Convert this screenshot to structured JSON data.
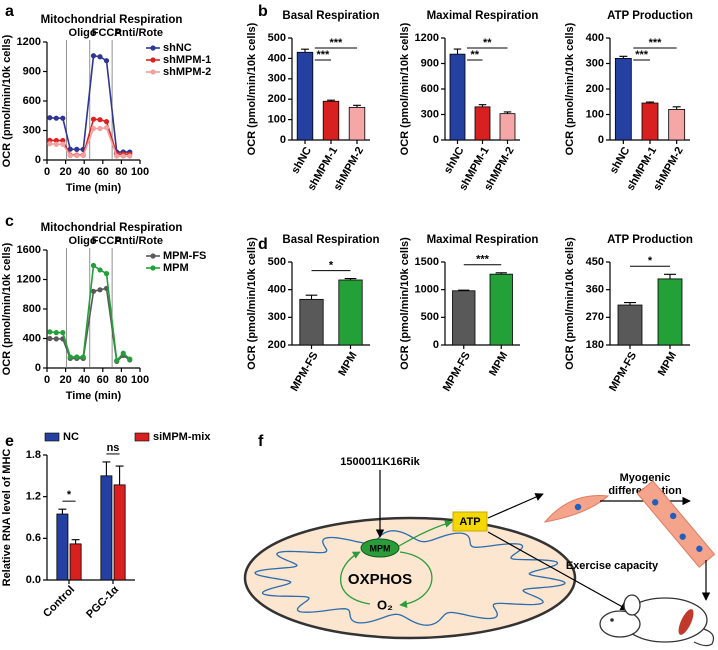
{
  "panel_labels": [
    "a",
    "b",
    "c",
    "d",
    "e",
    "f"
  ],
  "chart_data": [
    {
      "type": "line",
      "title": "Mitochondrial Respiration",
      "xlabel": "Time (min)",
      "ylabel": "OCR (pmol/min/10k cells)",
      "x": [
        3,
        10,
        17,
        25,
        32,
        39,
        50,
        57,
        64,
        75,
        82,
        89
      ],
      "xlim": [
        0,
        100
      ],
      "xticks": [
        0,
        20,
        40,
        60,
        80,
        100
      ],
      "ylim": [
        0,
        1200
      ],
      "yticks": [
        0,
        300,
        600,
        900,
        1200
      ],
      "injections": [
        {
          "label": "Oligo",
          "x": 21
        },
        {
          "label": "FCCP",
          "x": 46
        },
        {
          "label": "Anti/Rote",
          "x": 70
        }
      ],
      "series": [
        {
          "name": "shNC",
          "color": "#2e3592",
          "values": [
            430,
            425,
            425,
            110,
            108,
            108,
            1060,
            1050,
            1010,
            80,
            82,
            80
          ]
        },
        {
          "name": "shMPM-1",
          "color": "#e02020",
          "values": [
            200,
            198,
            198,
            50,
            50,
            50,
            415,
            410,
            390,
            60,
            60,
            58
          ]
        },
        {
          "name": "shMPM-2",
          "color": "#f2a0a0",
          "values": [
            165,
            160,
            160,
            45,
            45,
            45,
            320,
            320,
            330,
            40,
            40,
            40
          ]
        }
      ]
    },
    {
      "type": "bar",
      "title": "Basal Respiration",
      "ylabel": "OCR (pmol/min/10k cells)",
      "categories": [
        "shNC",
        "shMPM-1",
        "shMPM-2"
      ],
      "colors": [
        "#2440a0",
        "#d92020",
        "#f5a6a6"
      ],
      "values": [
        430,
        190,
        160
      ],
      "errors": [
        15,
        5,
        10
      ],
      "ylim": [
        0,
        500
      ],
      "yticks": [
        0,
        100,
        200,
        300,
        400,
        500
      ],
      "significance": [
        {
          "pair": [
            0,
            1
          ],
          "label": "***"
        },
        {
          "pair": [
            0,
            2
          ],
          "label": "***"
        }
      ]
    },
    {
      "type": "bar",
      "title": "Maximal Respiration",
      "ylabel": "OCR (pmol/min/10k cells)",
      "categories": [
        "shNC",
        "shMPM-1",
        "shMPM-2"
      ],
      "colors": [
        "#2440a0",
        "#d92020",
        "#f5a6a6"
      ],
      "values": [
        1010,
        390,
        310
      ],
      "errors": [
        60,
        25,
        20
      ],
      "ylim": [
        0,
        1200
      ],
      "yticks": [
        0,
        300,
        600,
        900,
        1200
      ],
      "significance": [
        {
          "pair": [
            0,
            1
          ],
          "label": "**"
        },
        {
          "pair": [
            0,
            2
          ],
          "label": "**"
        }
      ]
    },
    {
      "type": "bar",
      "title": "ATP Production",
      "ylabel": "OCR (pmol/min/10k cells)",
      "categories": [
        "shNC",
        "shMPM-1",
        "shMPM-2"
      ],
      "colors": [
        "#2440a0",
        "#d92020",
        "#f5a6a6"
      ],
      "values": [
        320,
        145,
        120
      ],
      "errors": [
        8,
        4,
        10
      ],
      "ylim": [
        0,
        400
      ],
      "yticks": [
        0,
        100,
        200,
        300,
        400
      ],
      "significance": [
        {
          "pair": [
            0,
            1
          ],
          "label": "***"
        },
        {
          "pair": [
            0,
            2
          ],
          "label": "***"
        }
      ]
    },
    {
      "type": "line",
      "title": "Mitochondrial Respiration",
      "xlabel": "Time (min)",
      "ylabel": "OCR (pmol/min/10k cells)",
      "x": [
        3,
        10,
        17,
        25,
        32,
        39,
        50,
        57,
        64,
        75,
        82,
        89
      ],
      "xlim": [
        0,
        100
      ],
      "xticks": [
        0,
        20,
        40,
        60,
        80,
        100
      ],
      "ylim": [
        0,
        1600
      ],
      "yticks": [
        0,
        400,
        800,
        1200,
        1600
      ],
      "injections": [
        {
          "label": "Oligo",
          "x": 21
        },
        {
          "label": "FCCP",
          "x": 46
        },
        {
          "label": "Anti/Rote",
          "x": 70
        }
      ],
      "series": [
        {
          "name": "MPM-FS",
          "color": "#595959",
          "values": [
            400,
            395,
            395,
            130,
            130,
            130,
            1040,
            1060,
            1080,
            90,
            170,
            110
          ]
        },
        {
          "name": "MPM",
          "color": "#23a038",
          "values": [
            490,
            480,
            480,
            150,
            150,
            150,
            1390,
            1330,
            1280,
            100,
            200,
            120
          ]
        }
      ]
    },
    {
      "type": "bar",
      "title": "Basal Respiration",
      "ylabel": "OCR (pmol/min/10k cells)",
      "categories": [
        "MPM-FS",
        "MPM"
      ],
      "colors": [
        "#595959",
        "#23a038"
      ],
      "values": [
        365,
        435
      ],
      "errors": [
        15,
        5
      ],
      "ylim": [
        200,
        500
      ],
      "yticks": [
        200,
        300,
        400,
        500
      ],
      "significance": [
        {
          "pair": [
            0,
            1
          ],
          "label": "*"
        }
      ]
    },
    {
      "type": "bar",
      "title": "Maximal Respiration",
      "ylabel": "OCR (pmol/min/10k cells)",
      "categories": [
        "MPM-FS",
        "MPM"
      ],
      "colors": [
        "#595959",
        "#23a038"
      ],
      "values": [
        980,
        1280
      ],
      "errors": [
        10,
        25
      ],
      "ylim": [
        0,
        1500
      ],
      "yticks": [
        0,
        500,
        1000,
        1500
      ],
      "significance": [
        {
          "pair": [
            0,
            1
          ],
          "label": "***"
        }
      ]
    },
    {
      "type": "bar",
      "title": "ATP Production",
      "ylabel": "OCR (pmol/min/10k cells)",
      "categories": [
        "MPM-FS",
        "MPM"
      ],
      "colors": [
        "#595959",
        "#23a038"
      ],
      "values": [
        310,
        395
      ],
      "errors": [
        8,
        15
      ],
      "ylim": [
        180,
        450
      ],
      "yticks": [
        180,
        270,
        360,
        450
      ],
      "significance": [
        {
          "pair": [
            0,
            1
          ],
          "label": "*"
        }
      ]
    },
    {
      "type": "grouped_bar",
      "ylabel": "Relative RNA level of MHC",
      "categories": [
        "Control",
        "PGC-1α"
      ],
      "series": [
        {
          "name": "NC",
          "color": "#2440a0",
          "values": [
            0.95,
            1.5
          ],
          "errors": [
            0.07,
            0.2
          ]
        },
        {
          "name": "siMPM-mix",
          "color": "#d92020",
          "values": [
            0.52,
            1.37
          ],
          "errors": [
            0.06,
            0.27
          ]
        }
      ],
      "ylim": [
        0,
        1.8
      ],
      "yticks": [
        {
          "value": 0,
          "label": "0.0"
        },
        {
          "value": 0.6,
          "label": "0.6"
        },
        {
          "value": 1.2,
          "label": "1.2"
        },
        {
          "value": 1.8,
          "label": "1.8"
        }
      ],
      "significance": [
        {
          "category": 0,
          "label": "*"
        },
        {
          "category": 1,
          "label": "ns"
        }
      ]
    }
  ],
  "diagram": {
    "gene": "1500011K16Rik",
    "protein": "MPM",
    "process": "OXPHOS",
    "oxygen": "O₂",
    "atp": "ATP",
    "myogenic": [
      "Myogenic",
      "differentiation"
    ],
    "exercise": "Exercise capacity"
  }
}
